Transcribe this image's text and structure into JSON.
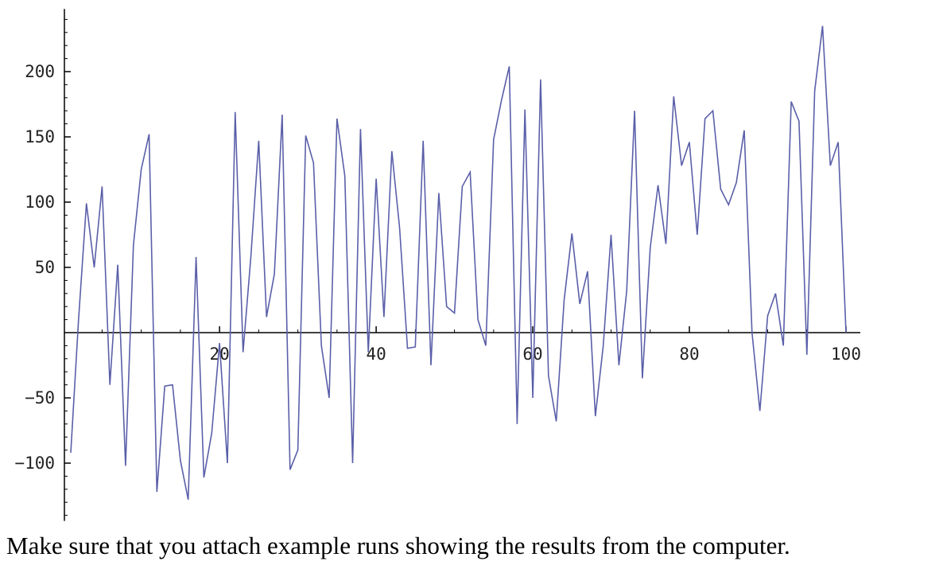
{
  "chart_data": {
    "type": "line",
    "title": "",
    "xlabel": "",
    "ylabel": "",
    "xlim": [
      1,
      100
    ],
    "ylim": [
      -140,
      245
    ],
    "xticks": [
      20,
      40,
      60,
      80,
      100
    ],
    "yticks": [
      -100,
      -50,
      50,
      100,
      150,
      200
    ],
    "xtick_labels": [
      "20",
      "40",
      "60",
      "80",
      "100"
    ],
    "ytick_labels": [
      "−100",
      "−50",
      "50",
      "100",
      "150",
      "200"
    ],
    "grid": false,
    "line_color": "#5a5fa8",
    "axis_color": "#000000",
    "x": [
      1,
      2,
      3,
      4,
      5,
      6,
      7,
      8,
      9,
      10,
      11,
      12,
      13,
      14,
      15,
      16,
      17,
      18,
      19,
      20,
      21,
      22,
      23,
      24,
      25,
      26,
      27,
      28,
      29,
      30,
      31,
      32,
      33,
      34,
      35,
      36,
      37,
      38,
      39,
      40,
      41,
      42,
      43,
      44,
      45,
      46,
      47,
      48,
      49,
      50,
      51,
      52,
      53,
      54,
      55,
      56,
      57,
      58,
      59,
      60,
      61,
      62,
      63,
      64,
      65,
      66,
      67,
      68,
      69,
      70,
      71,
      72,
      73,
      74,
      75,
      76,
      77,
      78,
      79,
      80,
      81,
      82,
      83,
      84,
      85,
      86,
      87,
      88,
      89,
      90,
      91,
      92,
      93,
      94,
      95,
      96,
      97,
      98,
      99,
      100
    ],
    "series": [
      {
        "values": [
          -92,
          10,
          99,
          50,
          112,
          -40,
          52,
          -102,
          67,
          125,
          152,
          -122,
          -41,
          -40,
          -98,
          -128,
          58,
          -111,
          -77,
          -8,
          -100,
          169,
          -15,
          58,
          147,
          12,
          45,
          167,
          -105,
          -90,
          151,
          130,
          -10,
          -50,
          164,
          120,
          -100,
          156,
          -15,
          118,
          12,
          139,
          80,
          -12,
          -11,
          147,
          -25,
          107,
          20,
          15,
          112,
          123,
          10,
          -10,
          148,
          178,
          204,
          -70,
          171,
          -50,
          194,
          -33,
          -68,
          25,
          76,
          22,
          47,
          -64,
          -10,
          75,
          -25,
          32,
          170,
          -35,
          65,
          113,
          68,
          181,
          128,
          146,
          75,
          164,
          170,
          110,
          98,
          115,
          155,
          0,
          -60,
          13,
          30,
          -10,
          177,
          162,
          -17,
          185,
          235,
          128,
          146,
          0
        ]
      }
    ]
  },
  "caption": "Make sure that you attach example runs showing the results from the computer."
}
